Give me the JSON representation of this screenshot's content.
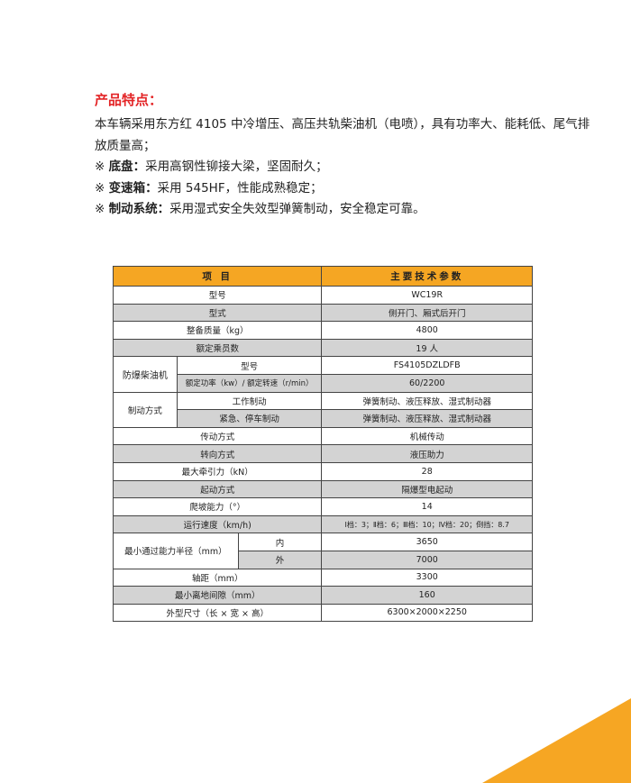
{
  "intro": {
    "title": "产品特点：",
    "line1": "本车辆采用东方红 4105 中冷增压、高压共轨柴油机（电喷），具有功率大、能耗低、尾气排放质量高；",
    "bullet_mark": "※",
    "items": [
      {
        "label": "底盘：",
        "text": "采用高钢性铆接大梁，坚固耐久；"
      },
      {
        "label": "变速箱：",
        "text": "采用 545HF，性能成熟稳定；"
      },
      {
        "label": "制动系统：",
        "text": "采用湿式安全失效型弹簧制动，安全稳定可靠。"
      }
    ]
  },
  "table": {
    "headers": [
      "项 目",
      "主要技术参数"
    ],
    "rows": {
      "model": [
        "型号",
        "WC19R"
      ],
      "type": [
        "型式",
        "侧开门、厢式后开门"
      ],
      "mass": [
        "整备质量（kg）",
        "4800"
      ],
      "crew": [
        "额定乘员数",
        "19 人"
      ],
      "engine_group": "防爆柴油机",
      "engine_model": [
        "型号",
        "FS4105DZLDFB"
      ],
      "engine_power": [
        "额定功率（kw）/ 额定转速（r/min）",
        "60/2200"
      ],
      "brake_group": "制动方式",
      "brake_work": [
        "工作制动",
        "弹簧制动、液压释放、湿式制动器"
      ],
      "brake_emergency": [
        "紧急、停车制动",
        "弹簧制动、液压释放、湿式制动器"
      ],
      "transmission": [
        "传动方式",
        "机械传动"
      ],
      "steering": [
        "转向方式",
        "液压助力"
      ],
      "traction": [
        "最大牵引力（kN）",
        "28"
      ],
      "start": [
        "起动方式",
        "隔爆型电起动"
      ],
      "climb": [
        "爬坡能力（°）",
        "14"
      ],
      "speed": [
        "运行速度（km/h)",
        "Ⅰ档：3；Ⅱ档：6；Ⅲ档：10；Ⅳ档：20；倒挡：8.7"
      ],
      "radius_group": "最小通过能力半径（mm）",
      "radius_inner": [
        "内",
        "3650"
      ],
      "radius_outer": [
        "外",
        "7000"
      ],
      "wheelbase": [
        "轴距（mm）",
        "3300"
      ],
      "clearance": [
        "最小离地间隙（mm）",
        "160"
      ],
      "dimensions": [
        "外型尺寸（长 × 宽 × 高）",
        "6300×2000×2250"
      ]
    }
  },
  "colors": {
    "title_red": "#e32426",
    "header_orange": "#f5a623",
    "row_gray": "#d3d3d3",
    "corner_orange": "#f6a623"
  }
}
